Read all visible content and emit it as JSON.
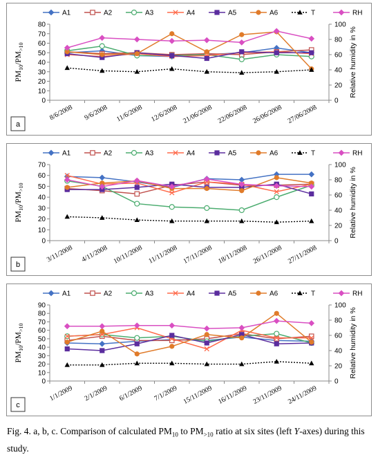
{
  "chart_data": [
    {
      "type": "line",
      "panel_label": "a",
      "categories": [
        "8/6/2008",
        "9/6/2008",
        "11/6/2008",
        "12/6/2008",
        "21/06/2008",
        "22/06/2008",
        "26/06/2008",
        "27/06/2008"
      ],
      "y_left_label": "PM10/PM>10",
      "y_right_label": "Relative humidity in %",
      "ylim_left": [
        0,
        80
      ],
      "ylim_right": [
        0,
        100
      ],
      "yticks_left": [
        0,
        10,
        20,
        30,
        40,
        50,
        60,
        70,
        80
      ],
      "yticks_right": [
        0,
        20,
        40,
        60,
        80,
        100
      ],
      "series": [
        {
          "name": "A1",
          "axis": "left",
          "values": [
            50,
            52,
            47,
            46,
            48,
            50,
            55,
            50
          ]
        },
        {
          "name": "A2",
          "axis": "left",
          "values": [
            51,
            49,
            50,
            48,
            49,
            48,
            51,
            53
          ]
        },
        {
          "name": "A3",
          "axis": "left",
          "values": [
            52,
            57,
            47,
            47,
            48,
            43,
            48,
            46
          ]
        },
        {
          "name": "A4",
          "axis": "left",
          "values": [
            48,
            46,
            49,
            46,
            47,
            50,
            51,
            49
          ]
        },
        {
          "name": "A5",
          "axis": "left",
          "values": [
            49,
            45,
            50,
            47,
            44,
            51,
            50,
            50
          ]
        },
        {
          "name": "A6",
          "axis": "left",
          "values": [
            51,
            48,
            49,
            70,
            51,
            69,
            72,
            33
          ]
        },
        {
          "name": "T",
          "axis": "left",
          "values": [
            34,
            31,
            30,
            33,
            30,
            29,
            30,
            32
          ]
        },
        {
          "name": "RH",
          "axis": "right",
          "values": [
            69,
            82,
            80,
            78,
            79,
            76,
            91,
            81
          ]
        }
      ]
    },
    {
      "type": "line",
      "panel_label": "b",
      "categories": [
        "3/11/2008",
        "4/11/2008",
        "10/11/2008",
        "11/11/2008",
        "17/11/2008",
        "18/11/2008",
        "26/11/2008",
        "27/11/2008"
      ],
      "y_left_label": "PM10/PM>10",
      "y_right_label": "Relative humidity in %",
      "ylim_left": [
        0,
        70
      ],
      "ylim_right": [
        0,
        100
      ],
      "yticks_left": [
        0,
        10,
        20,
        30,
        40,
        50,
        60,
        70
      ],
      "yticks_right": [
        0,
        20,
        40,
        60,
        80,
        100
      ],
      "series": [
        {
          "name": "A1",
          "axis": "left",
          "values": [
            59,
            58,
            54,
            49,
            57,
            56,
            61,
            61
          ]
        },
        {
          "name": "A2",
          "axis": "left",
          "values": [
            48,
            46,
            43,
            51,
            54,
            51,
            51,
            52
          ]
        },
        {
          "name": "A3",
          "axis": "left",
          "values": [
            55,
            50,
            34,
            31,
            30,
            28,
            40,
            51
          ]
        },
        {
          "name": "A4",
          "axis": "left",
          "values": [
            60,
            52,
            53,
            44,
            54,
            52,
            45,
            52
          ]
        },
        {
          "name": "A5",
          "axis": "left",
          "values": [
            47,
            47,
            49,
            52,
            49,
            49,
            52,
            43
          ]
        },
        {
          "name": "A6",
          "axis": "left",
          "values": [
            49,
            53,
            55,
            48,
            48,
            46,
            58,
            53
          ]
        },
        {
          "name": "T",
          "axis": "left",
          "values": [
            22,
            21,
            19,
            18,
            18,
            18,
            17,
            18
          ]
        },
        {
          "name": "RH",
          "axis": "right",
          "values": [
            80,
            71,
            79,
            71,
            81,
            74,
            72,
            71
          ]
        }
      ]
    },
    {
      "type": "line",
      "panel_label": "c",
      "categories": [
        "1/1/2009",
        "2/1/2009",
        "6/1/2009",
        "7/1/2009",
        "15/11/2009",
        "16/11/2009",
        "23/11/2009",
        "24/11/2009"
      ],
      "y_left_label": "PM10/PM>10",
      "y_right_label": "Relative humidity in %",
      "ylim_left": [
        0,
        90
      ],
      "ylim_right": [
        0,
        100
      ],
      "yticks_left": [
        0,
        10,
        20,
        30,
        40,
        50,
        60,
        70,
        80,
        90
      ],
      "yticks_right": [
        0,
        20,
        40,
        60,
        80,
        100
      ],
      "series": [
        {
          "name": "A1",
          "axis": "left",
          "values": [
            45,
            44,
            47,
            49,
            48,
            52,
            48,
            47
          ]
        },
        {
          "name": "A2",
          "axis": "left",
          "values": [
            48,
            53,
            48,
            48,
            50,
            56,
            50,
            53
          ]
        },
        {
          "name": "A3",
          "axis": "left",
          "values": [
            53,
            55,
            51,
            53,
            47,
            53,
            56,
            45
          ]
        },
        {
          "name": "A4",
          "axis": "left",
          "values": [
            53,
            55,
            63,
            50,
            38,
            60,
            51,
            51
          ]
        },
        {
          "name": "A5",
          "axis": "left",
          "values": [
            38,
            36,
            44,
            54,
            45,
            55,
            44,
            45
          ]
        },
        {
          "name": "A6",
          "axis": "left",
          "values": [
            46,
            59,
            32,
            41,
            55,
            51,
            80,
            46
          ]
        },
        {
          "name": "T",
          "axis": "left",
          "values": [
            19,
            19,
            21,
            21,
            20,
            20,
            23,
            21
          ]
        },
        {
          "name": "RH",
          "axis": "right",
          "values": [
            72,
            72,
            73,
            73,
            69,
            70,
            79,
            76
          ]
        }
      ]
    }
  ],
  "style": {
    "colors": {
      "A1": "#4472c4",
      "A2": "#c0504d",
      "A3": "#4bac6f",
      "A4": "#ff6a4a",
      "A5": "#5b2d9e",
      "A6": "#e07b2a",
      "T": "#000000",
      "RH": "#d94fc2"
    },
    "markers": {
      "A1": "diamond",
      "A2": "square-open",
      "A3": "circle-open",
      "A4": "x",
      "A5": "square-filled",
      "A6": "circle-filled",
      "T": "triangle",
      "RH": "diamond"
    }
  },
  "caption": {
    "p1": "Fig. 4. a, b, c. Comparison of calculated PM",
    "sub1": "10",
    "p2": " to PM",
    "sub2": ">10",
    "p3": " ratio at six sites (left ",
    "p4": "Y",
    "p5": "-axes) during this study."
  }
}
